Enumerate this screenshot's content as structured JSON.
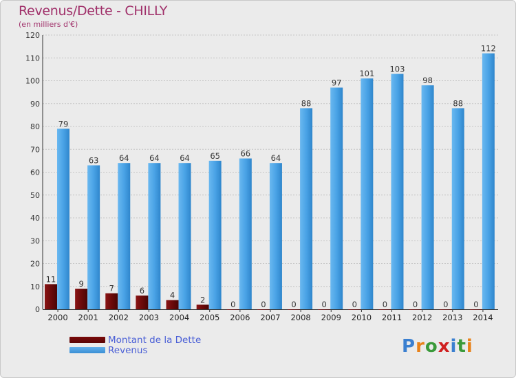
{
  "header": {
    "title": "Revenus/Dette - CHILLY",
    "subtitle": "(en milliers d'€)"
  },
  "legend": {
    "debt_label": "Montant de la Dette",
    "revenue_label": "Revenus"
  },
  "logo": {
    "text": "Proxiti",
    "colors": [
      "#3a7fd0",
      "#e8821a",
      "#3a9a3a",
      "#d02020",
      "#3a7fd0",
      "#3a9a3a",
      "#e8821a"
    ]
  },
  "chart_data": {
    "type": "bar",
    "categories": [
      "2000",
      "2001",
      "2002",
      "2003",
      "2004",
      "2005",
      "2006",
      "2007",
      "2008",
      "2009",
      "2010",
      "2011",
      "2012",
      "2013",
      "2014"
    ],
    "series": [
      {
        "name": "Montant de la Dette",
        "color": "#6b0a0a",
        "values": [
          11,
          9,
          7,
          6,
          4,
          2,
          0,
          0,
          0,
          0,
          0,
          0,
          0,
          0,
          0
        ]
      },
      {
        "name": "Revenus",
        "color": "#4aa3e6",
        "values": [
          79,
          63,
          64,
          64,
          64,
          65,
          66,
          64,
          88,
          97,
          101,
          103,
          98,
          88,
          112
        ]
      }
    ],
    "ylim": [
      0,
      120
    ],
    "yticks": [
      0,
      10,
      20,
      30,
      40,
      50,
      60,
      70,
      80,
      90,
      100,
      110,
      120
    ],
    "grid": true,
    "legend_position": "bottom-left"
  }
}
